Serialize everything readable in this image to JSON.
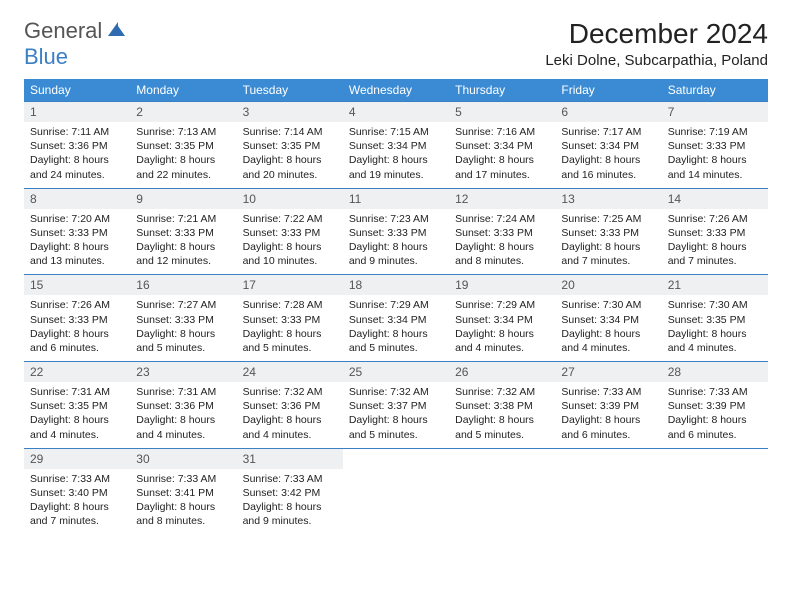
{
  "logo": {
    "part1": "General",
    "part2": "Blue"
  },
  "title": "December 2024",
  "subtitle": "Leki Dolne, Subcarpathia, Poland",
  "colors": {
    "header_bg": "#3b8bd4",
    "header_text": "#ffffff",
    "daynum_bg": "#eef0f2",
    "border": "#3b7fc4",
    "logo_gray": "#555555",
    "logo_blue": "#3b7fc4"
  },
  "weekdays": [
    "Sunday",
    "Monday",
    "Tuesday",
    "Wednesday",
    "Thursday",
    "Friday",
    "Saturday"
  ],
  "days": [
    {
      "n": "1",
      "sr": "7:11 AM",
      "ss": "3:36 PM",
      "dl": "8 hours and 24 minutes."
    },
    {
      "n": "2",
      "sr": "7:13 AM",
      "ss": "3:35 PM",
      "dl": "8 hours and 22 minutes."
    },
    {
      "n": "3",
      "sr": "7:14 AM",
      "ss": "3:35 PM",
      "dl": "8 hours and 20 minutes."
    },
    {
      "n": "4",
      "sr": "7:15 AM",
      "ss": "3:34 PM",
      "dl": "8 hours and 19 minutes."
    },
    {
      "n": "5",
      "sr": "7:16 AM",
      "ss": "3:34 PM",
      "dl": "8 hours and 17 minutes."
    },
    {
      "n": "6",
      "sr": "7:17 AM",
      "ss": "3:34 PM",
      "dl": "8 hours and 16 minutes."
    },
    {
      "n": "7",
      "sr": "7:19 AM",
      "ss": "3:33 PM",
      "dl": "8 hours and 14 minutes."
    },
    {
      "n": "8",
      "sr": "7:20 AM",
      "ss": "3:33 PM",
      "dl": "8 hours and 13 minutes."
    },
    {
      "n": "9",
      "sr": "7:21 AM",
      "ss": "3:33 PM",
      "dl": "8 hours and 12 minutes."
    },
    {
      "n": "10",
      "sr": "7:22 AM",
      "ss": "3:33 PM",
      "dl": "8 hours and 10 minutes."
    },
    {
      "n": "11",
      "sr": "7:23 AM",
      "ss": "3:33 PM",
      "dl": "8 hours and 9 minutes."
    },
    {
      "n": "12",
      "sr": "7:24 AM",
      "ss": "3:33 PM",
      "dl": "8 hours and 8 minutes."
    },
    {
      "n": "13",
      "sr": "7:25 AM",
      "ss": "3:33 PM",
      "dl": "8 hours and 7 minutes."
    },
    {
      "n": "14",
      "sr": "7:26 AM",
      "ss": "3:33 PM",
      "dl": "8 hours and 7 minutes."
    },
    {
      "n": "15",
      "sr": "7:26 AM",
      "ss": "3:33 PM",
      "dl": "8 hours and 6 minutes."
    },
    {
      "n": "16",
      "sr": "7:27 AM",
      "ss": "3:33 PM",
      "dl": "8 hours and 5 minutes."
    },
    {
      "n": "17",
      "sr": "7:28 AM",
      "ss": "3:33 PM",
      "dl": "8 hours and 5 minutes."
    },
    {
      "n": "18",
      "sr": "7:29 AM",
      "ss": "3:34 PM",
      "dl": "8 hours and 5 minutes."
    },
    {
      "n": "19",
      "sr": "7:29 AM",
      "ss": "3:34 PM",
      "dl": "8 hours and 4 minutes."
    },
    {
      "n": "20",
      "sr": "7:30 AM",
      "ss": "3:34 PM",
      "dl": "8 hours and 4 minutes."
    },
    {
      "n": "21",
      "sr": "7:30 AM",
      "ss": "3:35 PM",
      "dl": "8 hours and 4 minutes."
    },
    {
      "n": "22",
      "sr": "7:31 AM",
      "ss": "3:35 PM",
      "dl": "8 hours and 4 minutes."
    },
    {
      "n": "23",
      "sr": "7:31 AM",
      "ss": "3:36 PM",
      "dl": "8 hours and 4 minutes."
    },
    {
      "n": "24",
      "sr": "7:32 AM",
      "ss": "3:36 PM",
      "dl": "8 hours and 4 minutes."
    },
    {
      "n": "25",
      "sr": "7:32 AM",
      "ss": "3:37 PM",
      "dl": "8 hours and 5 minutes."
    },
    {
      "n": "26",
      "sr": "7:32 AM",
      "ss": "3:38 PM",
      "dl": "8 hours and 5 minutes."
    },
    {
      "n": "27",
      "sr": "7:33 AM",
      "ss": "3:39 PM",
      "dl": "8 hours and 6 minutes."
    },
    {
      "n": "28",
      "sr": "7:33 AM",
      "ss": "3:39 PM",
      "dl": "8 hours and 6 minutes."
    },
    {
      "n": "29",
      "sr": "7:33 AM",
      "ss": "3:40 PM",
      "dl": "8 hours and 7 minutes."
    },
    {
      "n": "30",
      "sr": "7:33 AM",
      "ss": "3:41 PM",
      "dl": "8 hours and 8 minutes."
    },
    {
      "n": "31",
      "sr": "7:33 AM",
      "ss": "3:42 PM",
      "dl": "8 hours and 9 minutes."
    }
  ],
  "labels": {
    "sunrise": "Sunrise:",
    "sunset": "Sunset:",
    "daylight": "Daylight:"
  }
}
